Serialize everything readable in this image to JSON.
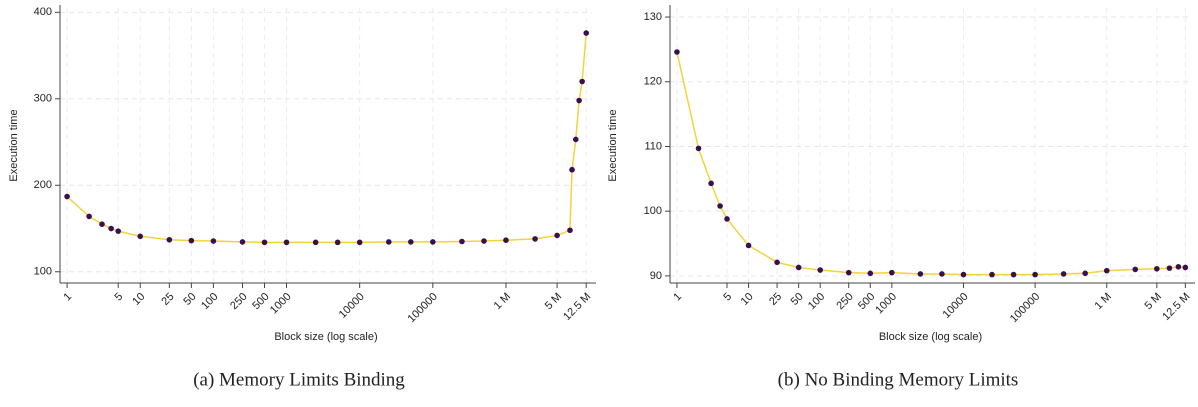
{
  "chart_data": [
    {
      "type": "line",
      "caption": "(a) Memory Limits Binding",
      "ylabel": "Execution time",
      "xlabel": "Block size (log scale)",
      "xscale": "log",
      "grid": true,
      "color": "#f2d43a",
      "marker_color": "#3b0f4f",
      "x": [
        1,
        2,
        3,
        4,
        5,
        10,
        25,
        50,
        100,
        250,
        500,
        1000,
        2500,
        5000,
        10000,
        25000,
        50000,
        100000,
        250000,
        500000,
        1000000,
        2500000,
        5000000,
        7500000,
        8000000,
        9000000,
        10000000,
        11000000,
        12500000
      ],
      "values": [
        187,
        164,
        155,
        150,
        147,
        141,
        137,
        136,
        135.5,
        134.5,
        134,
        134,
        134,
        134,
        134,
        134.5,
        134.5,
        134.5,
        135,
        135.5,
        136.5,
        138,
        142,
        148,
        218,
        253,
        298,
        320,
        376
      ],
      "xlim": [
        0.8,
        15000000
      ],
      "xticks": [
        1,
        5,
        10,
        25,
        50,
        100,
        250,
        500,
        1000,
        10000,
        100000,
        {
          "value": 1000000,
          "label": "1 M"
        },
        {
          "value": 5000000,
          "label": "5 M"
        },
        {
          "value": 12500000,
          "label": "12.5 M"
        }
      ],
      "ylim": [
        87,
        405
      ],
      "yticks": [
        100,
        200,
        300,
        400
      ]
    },
    {
      "type": "line",
      "caption": "(b) No Binding Memory Limits",
      "ylabel": "Execution time",
      "xlabel": "Block size (log scale)",
      "xscale": "log",
      "grid": true,
      "color": "#f2d43a",
      "marker_color": "#3b0f4f",
      "x": [
        1,
        2,
        3,
        4,
        5,
        10,
        25,
        50,
        100,
        250,
        500,
        1000,
        2500,
        5000,
        10000,
        25000,
        50000,
        100000,
        250000,
        500000,
        1000000,
        2500000,
        5000000,
        7500000,
        10000000,
        12500000
      ],
      "values": [
        124.6,
        109.7,
        104.3,
        100.8,
        98.8,
        94.7,
        92.1,
        91.3,
        90.9,
        90.5,
        90.4,
        90.5,
        90.3,
        90.3,
        90.2,
        90.2,
        90.2,
        90.2,
        90.3,
        90.4,
        90.8,
        91.0,
        91.1,
        91.2,
        91.4,
        91.3
      ],
      "xlim": [
        0.8,
        15000000
      ],
      "xticks": [
        1,
        5,
        10,
        25,
        50,
        100,
        250,
        500,
        1000,
        10000,
        100000,
        {
          "value": 1000000,
          "label": "1 M"
        },
        {
          "value": 5000000,
          "label": "5 M"
        },
        {
          "value": 12500000,
          "label": "12.5 M"
        }
      ],
      "ylim": [
        88.9,
        131.4
      ],
      "yticks": [
        90,
        100,
        110,
        120,
        130
      ]
    }
  ]
}
